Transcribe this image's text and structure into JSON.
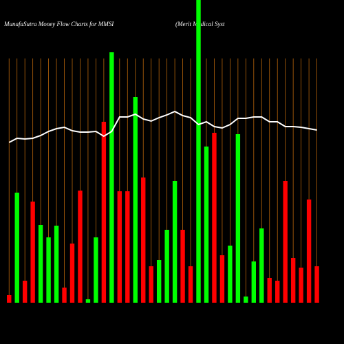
{
  "chart_data": {
    "type": "bar",
    "title": "MunafaSutra  Money Flow  Charts for MMSI",
    "subtitle": "(Merit Medical Syst",
    "ylim": [
      0,
      440
    ],
    "values": [
      11,
      160,
      32,
      147,
      113,
      95,
      112,
      22,
      86,
      163,
      5,
      95,
      263,
      364,
      162,
      162,
      299,
      182,
      53,
      62,
      106,
      177,
      106,
      53,
      440,
      227,
      247,
      69,
      83,
      245,
      9,
      60,
      108,
      36,
      32,
      177,
      65,
      51,
      150,
      53
    ],
    "colors": [
      "#ff0000",
      "#00ff00",
      "#ff0000",
      "#ff0000",
      "#00ff00",
      "#00ff00",
      "#00ff00",
      "#ff0000",
      "#ff0000",
      "#ff0000",
      "#00ff00",
      "#00ff00",
      "#ff0000",
      "#00ff00",
      "#ff0000",
      "#ff0000",
      "#00ff00",
      "#ff0000",
      "#ff0000",
      "#00ff00",
      "#00ff00",
      "#00ff00",
      "#ff0000",
      "#ff0000",
      "#00ff00",
      "#00ff00",
      "#ff0000",
      "#ff0000",
      "#00ff00",
      "#00ff00",
      "#00ff00",
      "#00ff00",
      "#00ff00",
      "#ff0000",
      "#ff0000",
      "#ff0000",
      "#ff0000",
      "#ff0000",
      "#ff0000",
      "#ff0000"
    ],
    "line": {
      "color": "#ffffff",
      "values": [
        233,
        239,
        238,
        239,
        243,
        249,
        253,
        255,
        250,
        248,
        248,
        249,
        242,
        249,
        270,
        270,
        274,
        267,
        264,
        269,
        273,
        278,
        272,
        269,
        259,
        263,
        256,
        254,
        259,
        268,
        268,
        270,
        270,
        263,
        263,
        256,
        256,
        255,
        253,
        251
      ]
    },
    "grid_color": "#b8650a"
  }
}
